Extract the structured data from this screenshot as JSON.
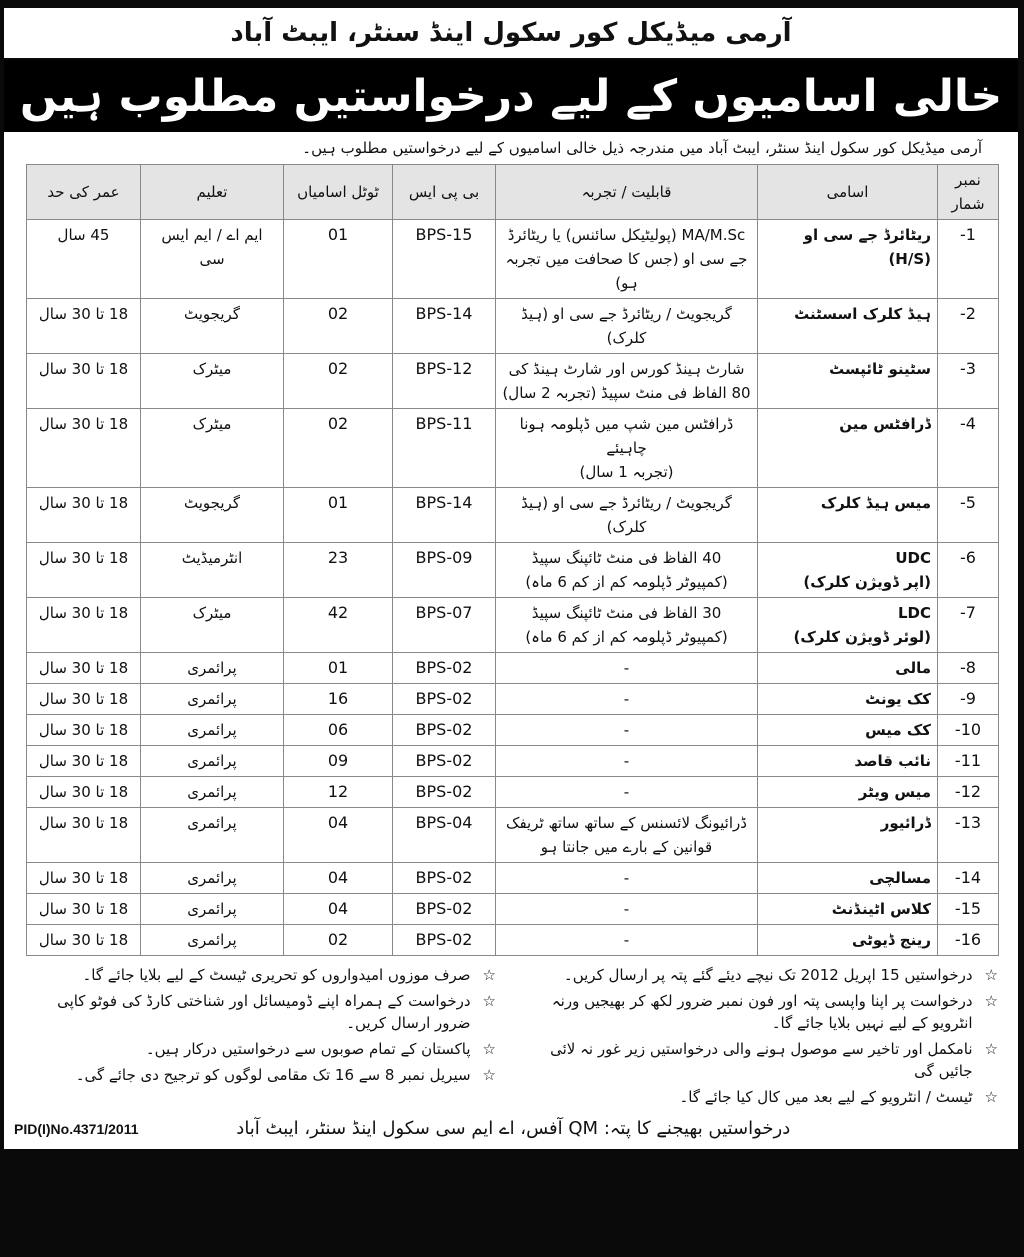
{
  "header": {
    "title": "آرمی میڈیکل کور سکول اینڈ سنٹر، ایبٹ آباد",
    "banner": "خالی اسامیوں کے لیے درخواستیں مطلوب ہیں",
    "intro": "آرمی میڈیکل کور سکول اینڈ سنٹر، ایبٹ آباد میں مندرجہ ذیل خالی اسامیوں کے لیے درخواستیں مطلوب ہیں۔"
  },
  "table": {
    "columns": [
      "نمبر شمار",
      "اسامی",
      "قابلیت / تجربہ",
      "بی پی ایس",
      "ٹوٹل اسامیاں",
      "تعلیم",
      "عمر کی حد"
    ],
    "rows": [
      {
        "no": "-1",
        "post": "ریٹائرڈ جے سی او (H/S)",
        "qual": "MA/M.Sc (پولیٹیکل سائنس) یا ریٹائرڈ\nجے سی او (جس کا صحافت میں تجربہ ہو)",
        "bps": "BPS-15",
        "count": "01",
        "edu": "ایم اے / ایم ایس سی",
        "age": "45 سال"
      },
      {
        "no": "-2",
        "post": "ہیڈ کلرک اسسٹنٹ",
        "qual": "گریجویٹ / ریٹائرڈ جے سی او (ہیڈ کلرک)",
        "bps": "BPS-14",
        "count": "02",
        "edu": "گریجویٹ",
        "age": "18 تا 30 سال"
      },
      {
        "no": "-3",
        "post": "سٹینو ٹائپسٹ",
        "qual": "شارٹ ہینڈ کورس اور شارٹ ہینڈ کی\n80 الفاظ فی منٹ سپیڈ (تجربہ 2 سال)",
        "bps": "BPS-12",
        "count": "02",
        "edu": "میٹرک",
        "age": "18 تا 30 سال"
      },
      {
        "no": "-4",
        "post": "ڈرافٹس مین",
        "qual": "ڈرافٹس مین شپ میں ڈپلومہ ہونا چاہیئے\n(تجربہ 1 سال)",
        "bps": "BPS-11",
        "count": "02",
        "edu": "میٹرک",
        "age": "18 تا 30 سال"
      },
      {
        "no": "-5",
        "post": "میس ہیڈ کلرک",
        "qual": "گریجویٹ / ریٹائرڈ جے سی او (ہیڈ کلرک)",
        "bps": "BPS-14",
        "count": "01",
        "edu": "گریجویٹ",
        "age": "18 تا 30 سال"
      },
      {
        "no": "-6",
        "post": "UDC\n(اپر ڈویژن کلرک)",
        "qual": "40 الفاظ فی منٹ ٹائپنگ سپیڈ\n(کمپیوٹر ڈپلومہ کم از کم 6 ماہ)",
        "bps": "BPS-09",
        "count": "23",
        "edu": "انٹرمیڈیٹ",
        "age": "18 تا 30 سال"
      },
      {
        "no": "-7",
        "post": "LDC\n(لوئر ڈویژن کلرک)",
        "qual": "30 الفاظ فی منٹ ٹائپنگ سپیڈ\n(کمپیوٹر ڈپلومہ کم از کم 6 ماہ)",
        "bps": "BPS-07",
        "count": "42",
        "edu": "میٹرک",
        "age": "18 تا 30 سال"
      },
      {
        "no": "-8",
        "post": "مالی",
        "qual": "-",
        "bps": "BPS-02",
        "count": "01",
        "edu": "پرائمری",
        "age": "18 تا 30 سال"
      },
      {
        "no": "-9",
        "post": "کک یونٹ",
        "qual": "-",
        "bps": "BPS-02",
        "count": "16",
        "edu": "پرائمری",
        "age": "18 تا 30 سال"
      },
      {
        "no": "-10",
        "post": "کک میس",
        "qual": "-",
        "bps": "BPS-02",
        "count": "06",
        "edu": "پرائمری",
        "age": "18 تا 30 سال"
      },
      {
        "no": "-11",
        "post": "نائب قاصد",
        "qual": "-",
        "bps": "BPS-02",
        "count": "09",
        "edu": "پرائمری",
        "age": "18 تا 30 سال"
      },
      {
        "no": "-12",
        "post": "میس ویٹر",
        "qual": "-",
        "bps": "BPS-02",
        "count": "12",
        "edu": "پرائمری",
        "age": "18 تا 30 سال"
      },
      {
        "no": "-13",
        "post": "ڈرائیور",
        "qual": "ڈرائیونگ لائسنس کے ساتھ ساتھ ٹریفک\nقوانین کے بارے میں جانتا ہو",
        "bps": "BPS-04",
        "count": "04",
        "edu": "پرائمری",
        "age": "18 تا 30 سال"
      },
      {
        "no": "-14",
        "post": "مسالچی",
        "qual": "-",
        "bps": "BPS-02",
        "count": "04",
        "edu": "پرائمری",
        "age": "18 تا 30 سال"
      },
      {
        "no": "-15",
        "post": "کلاس اٹینڈنٹ",
        "qual": "-",
        "bps": "BPS-02",
        "count": "04",
        "edu": "پرائمری",
        "age": "18 تا 30 سال"
      },
      {
        "no": "-16",
        "post": "رینج ڈیوٹی",
        "qual": "-",
        "bps": "BPS-02",
        "count": "02",
        "edu": "پرائمری",
        "age": "18 تا 30 سال"
      }
    ]
  },
  "notes": {
    "bullet_icon": "star-outline-icon",
    "right": [
      "درخواستیں 15 اپریل 2012 تک نیچے دیئے گئے پتہ پر ارسال کریں۔",
      "درخواست پر اپنا واپسی پتہ اور فون نمبر ضرور لکھ کر بھیجیں ورنہ انٹرویو کے لیے نہیں بلایا جائے گا۔",
      "نامکمل اور تاخیر سے موصول ہونے والی درخواستیں زیر غور نہ لائی جائیں گی",
      "ٹیسٹ / انٹرویو کے لیے بعد میں کال کیا جائے گا۔"
    ],
    "left": [
      "صرف موزوں امیدواروں کو تحریری ٹیسٹ کے لیے بلایا جائے گا۔",
      "درخواست کے ہمراہ اپنے ڈومیسائل اور شناختی کارڈ کی فوٹو کاپی ضرور ارسال کریں۔",
      "پاکستان کے تمام صوبوں سے درخواستیں درکار ہیں۔",
      "سیریل نمبر 8 سے 16 تک مقامی لوگوں کو ترجیح دی جائے گی۔"
    ]
  },
  "footer": {
    "address": "درخواستیں بھیجنے کا پتہ:  QM آفس، اے ایم سی سکول اینڈ سنٹر، ایبٹ آباد",
    "pid": "PID(I)No.4371/2011"
  }
}
